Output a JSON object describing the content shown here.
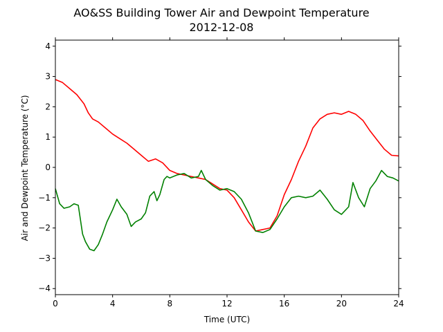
{
  "chart_data": {
    "type": "line",
    "title": "AO&SS Building Tower Air and Dewpoint Temperature",
    "subtitle": "2012-12-08",
    "xlabel": "Time (UTC)",
    "ylabel": "Air and Dewpoint Temperature (°C)",
    "xlim": [
      0,
      24
    ],
    "ylim": [
      -4.2,
      4.2
    ],
    "xticks": [
      0,
      4,
      8,
      12,
      16,
      20,
      24
    ],
    "xtick_labels": [
      "0",
      "4",
      "8",
      "12",
      "16",
      "20",
      "24"
    ],
    "yticks": [
      -4,
      -3,
      -2,
      -1,
      0,
      1,
      2,
      3,
      4
    ],
    "ytick_labels": [
      "−4",
      "−3",
      "−2",
      "−1",
      "0",
      "1",
      "2",
      "3",
      "4"
    ],
    "grid": false,
    "series": [
      {
        "color": "#ff0000",
        "x": [
          0,
          0.5,
          1,
          1.5,
          2,
          2.3,
          2.6,
          3,
          3.5,
          4,
          4.5,
          5,
          5.5,
          6,
          6.5,
          7,
          7.5,
          8,
          8.5,
          9,
          9.5,
          10,
          10.5,
          11,
          11.5,
          12,
          12.5,
          13,
          13.5,
          14,
          14.5,
          15,
          15.5,
          16,
          16.5,
          17,
          17.5,
          18,
          18.5,
          19,
          19.5,
          20,
          20.5,
          21,
          21.5,
          22,
          22.5,
          23,
          23.5,
          24
        ],
        "y": [
          2.9,
          2.8,
          2.6,
          2.4,
          2.1,
          1.8,
          1.6,
          1.5,
          1.3,
          1.1,
          0.95,
          0.8,
          0.6,
          0.4,
          0.2,
          0.28,
          0.15,
          -0.1,
          -0.2,
          -0.25,
          -0.3,
          -0.35,
          -0.4,
          -0.55,
          -0.7,
          -0.75,
          -1.0,
          -1.4,
          -1.8,
          -2.1,
          -2.05,
          -2.0,
          -1.6,
          -0.9,
          -0.4,
          0.2,
          0.7,
          1.3,
          1.6,
          1.75,
          1.8,
          1.75,
          1.85,
          1.75,
          1.55,
          1.2,
          0.9,
          0.6,
          0.4,
          0.38
        ]
      },
      {
        "color": "#008000",
        "x": [
          0,
          0.3,
          0.6,
          1,
          1.3,
          1.6,
          1.9,
          2.1,
          2.4,
          2.7,
          3,
          3.3,
          3.6,
          4,
          4.3,
          4.6,
          5,
          5.3,
          5.6,
          6,
          6.3,
          6.6,
          6.9,
          7.1,
          7.3,
          7.6,
          7.8,
          8,
          8.5,
          9,
          9.5,
          10,
          10.2,
          10.5,
          11,
          11.5,
          12,
          12.5,
          13,
          13.5,
          14,
          14.5,
          15,
          15.5,
          16,
          16.5,
          17,
          17.5,
          18,
          18.5,
          19,
          19.5,
          20,
          20.5,
          20.8,
          21.2,
          21.6,
          22,
          22.4,
          22.8,
          23.2,
          23.6,
          24
        ],
        "y": [
          -0.7,
          -1.2,
          -1.35,
          -1.3,
          -1.2,
          -1.25,
          -2.2,
          -2.45,
          -2.7,
          -2.75,
          -2.55,
          -2.2,
          -1.8,
          -1.4,
          -1.05,
          -1.3,
          -1.55,
          -1.95,
          -1.8,
          -1.7,
          -1.5,
          -0.95,
          -0.8,
          -1.1,
          -0.9,
          -0.4,
          -0.3,
          -0.35,
          -0.25,
          -0.2,
          -0.35,
          -0.3,
          -0.1,
          -0.4,
          -0.6,
          -0.75,
          -0.7,
          -0.8,
          -1.05,
          -1.5,
          -2.1,
          -2.15,
          -2.05,
          -1.7,
          -1.3,
          -1.0,
          -0.95,
          -1.0,
          -0.95,
          -0.75,
          -1.05,
          -1.4,
          -1.55,
          -1.3,
          -0.5,
          -1.0,
          -1.3,
          -0.7,
          -0.45,
          -0.1,
          -0.3,
          -0.35,
          -0.45
        ]
      }
    ]
  }
}
